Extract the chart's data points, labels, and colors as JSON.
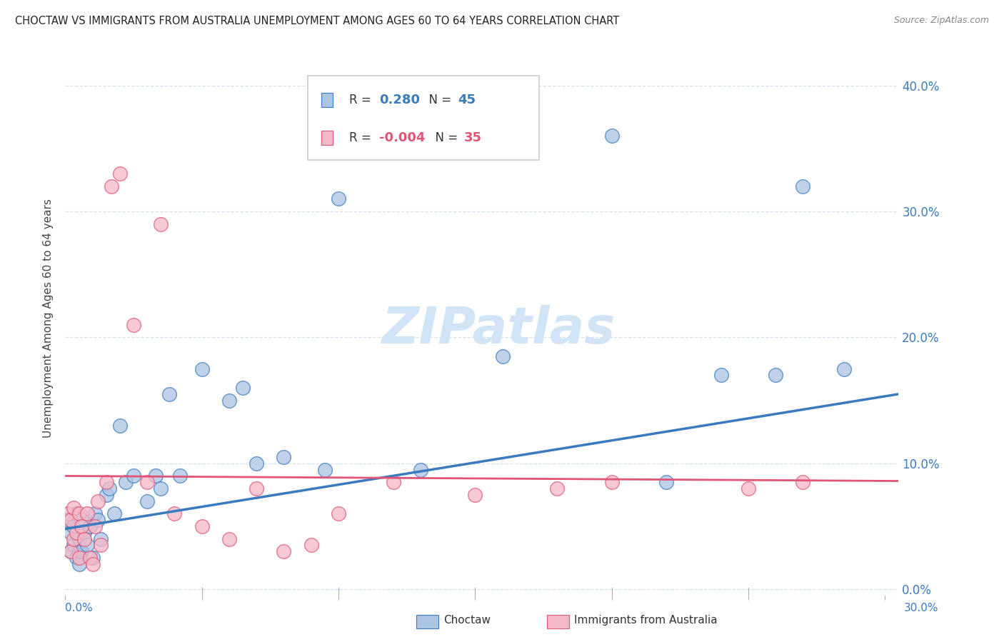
{
  "title": "CHOCTAW VS IMMIGRANTS FROM AUSTRALIA UNEMPLOYMENT AMONG AGES 60 TO 64 YEARS CORRELATION CHART",
  "source": "Source: ZipAtlas.com",
  "ylabel": "Unemployment Among Ages 60 to 64 years",
  "ytick_values": [
    0.0,
    0.1,
    0.2,
    0.3,
    0.4
  ],
  "ytick_labels": [
    "0.0%",
    "10.0%",
    "20.0%",
    "30.0%",
    "40.0%"
  ],
  "xlim": [
    0.0,
    0.305
  ],
  "ylim": [
    -0.005,
    0.435
  ],
  "color_blue": "#aac4e2",
  "color_pink": "#f5b8c8",
  "line_blue": "#3a7abf",
  "line_pink": "#e05575",
  "watermark_color": "#d0e4f5",
  "choctaw_x": [
    0.001,
    0.002,
    0.002,
    0.003,
    0.003,
    0.004,
    0.004,
    0.005,
    0.005,
    0.005,
    0.006,
    0.006,
    0.007,
    0.008,
    0.009,
    0.01,
    0.011,
    0.012,
    0.013,
    0.015,
    0.016,
    0.018,
    0.02,
    0.022,
    0.025,
    0.03,
    0.033,
    0.035,
    0.038,
    0.042,
    0.05,
    0.06,
    0.065,
    0.07,
    0.08,
    0.095,
    0.1,
    0.13,
    0.16,
    0.2,
    0.22,
    0.24,
    0.26,
    0.27,
    0.285
  ],
  "choctaw_y": [
    0.055,
    0.045,
    0.03,
    0.05,
    0.035,
    0.06,
    0.025,
    0.04,
    0.03,
    0.02,
    0.055,
    0.03,
    0.045,
    0.035,
    0.05,
    0.025,
    0.06,
    0.055,
    0.04,
    0.075,
    0.08,
    0.06,
    0.13,
    0.085,
    0.09,
    0.07,
    0.09,
    0.08,
    0.155,
    0.09,
    0.175,
    0.15,
    0.16,
    0.1,
    0.105,
    0.095,
    0.31,
    0.095,
    0.185,
    0.36,
    0.085,
    0.17,
    0.17,
    0.32,
    0.175
  ],
  "australia_x": [
    0.001,
    0.002,
    0.002,
    0.003,
    0.003,
    0.004,
    0.005,
    0.005,
    0.006,
    0.007,
    0.008,
    0.009,
    0.01,
    0.011,
    0.012,
    0.013,
    0.015,
    0.017,
    0.02,
    0.025,
    0.03,
    0.035,
    0.04,
    0.05,
    0.06,
    0.07,
    0.08,
    0.09,
    0.1,
    0.12,
    0.15,
    0.18,
    0.2,
    0.25,
    0.27
  ],
  "australia_y": [
    0.06,
    0.055,
    0.03,
    0.065,
    0.04,
    0.045,
    0.06,
    0.025,
    0.05,
    0.04,
    0.06,
    0.025,
    0.02,
    0.05,
    0.07,
    0.035,
    0.085,
    0.32,
    0.33,
    0.21,
    0.085,
    0.29,
    0.06,
    0.05,
    0.04,
    0.08,
    0.03,
    0.035,
    0.06,
    0.085,
    0.075,
    0.08,
    0.085,
    0.08,
    0.085
  ],
  "trend_blue_x0": 0.0,
  "trend_blue_y0": 0.048,
  "trend_blue_x1": 0.305,
  "trend_blue_y1": 0.155,
  "trend_pink_x0": 0.0,
  "trend_pink_y0": 0.09,
  "trend_pink_x1": 0.305,
  "trend_pink_y1": 0.086
}
